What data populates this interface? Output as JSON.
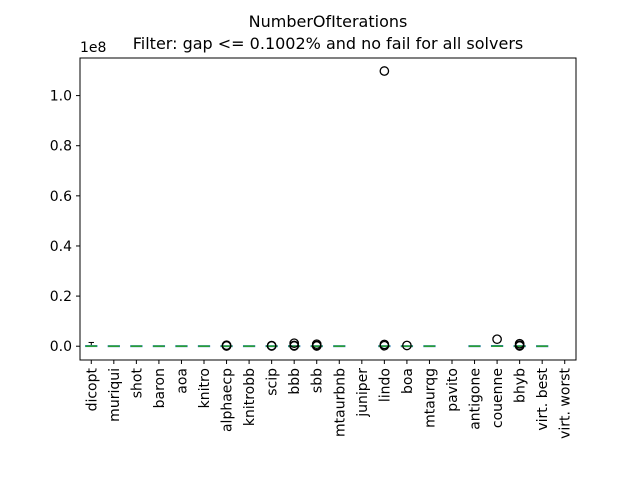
{
  "chart_data": {
    "type": "box",
    "title": "NumberOfIterations",
    "subtitle": "Filter: gap <= 0.1002% and no fail for all solvers",
    "xlabel": "",
    "ylabel": "",
    "y_offset_label": "1e8",
    "y_scale": 100000000,
    "ylim": [
      -5500000,
      115000000
    ],
    "yticks": [
      0,
      20000000,
      40000000,
      60000000,
      80000000,
      100000000
    ],
    "ytick_labels": [
      "0.0",
      "0.2",
      "0.4",
      "0.6",
      "0.8",
      "1.0"
    ],
    "grid": false,
    "categories": [
      "dicopt",
      "muriqui",
      "shot",
      "baron",
      "aoa",
      "knitro",
      "alphaecp",
      "knitrobb",
      "scip",
      "bbb",
      "sbb",
      "mtaurbnb",
      "juniper",
      "lindo",
      "boa",
      "mtaurqg",
      "pavito",
      "antigone",
      "couenne",
      "bhyb",
      "virt. best",
      "virt. worst"
    ],
    "boxes": [
      {
        "category": "dicopt",
        "q1": 0,
        "median": 10000,
        "q3": 60000,
        "whisker_low": 0,
        "whisker_high": 1500000,
        "outliers": []
      },
      {
        "category": "muriqui",
        "q1": 0,
        "median": 2000,
        "q3": 20000,
        "whisker_low": 0,
        "whisker_high": 50000,
        "outliers": []
      },
      {
        "category": "shot",
        "q1": 0,
        "median": 2000,
        "q3": 20000,
        "whisker_low": 0,
        "whisker_high": 50000,
        "outliers": []
      },
      {
        "category": "baron",
        "q1": 0,
        "median": 2000,
        "q3": 20000,
        "whisker_low": 0,
        "whisker_high": 50000,
        "outliers": []
      },
      {
        "category": "aoa",
        "q1": 0,
        "median": 2000,
        "q3": 20000,
        "whisker_low": 0,
        "whisker_high": 50000,
        "outliers": []
      },
      {
        "category": "knitro",
        "q1": 0,
        "median": 2000,
        "q3": 20000,
        "whisker_low": 0,
        "whisker_high": 50000,
        "outliers": []
      },
      {
        "category": "alphaecp",
        "q1": 0,
        "median": 2000,
        "q3": 20000,
        "whisker_low": 0,
        "whisker_high": 50000,
        "outliers": [
          100000,
          400000
        ]
      },
      {
        "category": "knitrobb",
        "q1": 0,
        "median": 2000,
        "q3": 20000,
        "whisker_low": 0,
        "whisker_high": 50000,
        "outliers": []
      },
      {
        "category": "scip",
        "q1": 0,
        "median": 2000,
        "q3": 20000,
        "whisker_low": 0,
        "whisker_high": 50000,
        "outliers": [
          100000,
          250000
        ]
      },
      {
        "category": "bbb",
        "q1": 0,
        "median": 2000,
        "q3": 20000,
        "whisker_low": 0,
        "whisker_high": 50000,
        "outliers": [
          100000,
          300000,
          1200000
        ]
      },
      {
        "category": "sbb",
        "q1": 0,
        "median": 2000,
        "q3": 20000,
        "whisker_low": 0,
        "whisker_high": 50000,
        "outliers": [
          100000,
          300000,
          800000
        ]
      },
      {
        "category": "mtaurbnb",
        "q1": 0,
        "median": 2000,
        "q3": 20000,
        "whisker_low": 0,
        "whisker_high": 50000,
        "outliers": []
      },
      {
        "category": "juniper",
        "q1": null,
        "median": null,
        "q3": null,
        "whisker_low": null,
        "whisker_high": null,
        "outliers": []
      },
      {
        "category": "lindo",
        "q1": 0,
        "median": 2000,
        "q3": 20000,
        "whisker_low": 0,
        "whisker_high": 50000,
        "outliers": [
          200000,
          700000,
          109800000
        ]
      },
      {
        "category": "boa",
        "q1": 0,
        "median": 2000,
        "q3": 20000,
        "whisker_low": 0,
        "whisker_high": 50000,
        "outliers": [
          300000
        ]
      },
      {
        "category": "mtaurqg",
        "q1": 0,
        "median": 2000,
        "q3": 20000,
        "whisker_low": 0,
        "whisker_high": 50000,
        "outliers": []
      },
      {
        "category": "pavito",
        "q1": null,
        "median": null,
        "q3": null,
        "whisker_low": null,
        "whisker_high": null,
        "outliers": []
      },
      {
        "category": "antigone",
        "q1": 0,
        "median": 2000,
        "q3": 20000,
        "whisker_low": 0,
        "whisker_high": 50000,
        "outliers": []
      },
      {
        "category": "couenne",
        "q1": 0,
        "median": 5000,
        "q3": 80000,
        "whisker_low": 0,
        "whisker_high": 300000,
        "outliers": [
          2800000
        ]
      },
      {
        "category": "bhyb",
        "q1": 0,
        "median": 2000,
        "q3": 20000,
        "whisker_low": 0,
        "whisker_high": 50000,
        "outliers": [
          100000,
          400000,
          1000000
        ]
      },
      {
        "category": "virt. best",
        "q1": 0,
        "median": 1000,
        "q3": 10000,
        "whisker_low": 0,
        "whisker_high": 30000,
        "outliers": []
      },
      {
        "category": "virt. worst",
        "q1": null,
        "median": null,
        "q3": null,
        "whisker_low": null,
        "whisker_high": null,
        "outliers": []
      }
    ],
    "colors": {
      "box": "#1f77b4",
      "median": "#2ca02c",
      "outlier": "#000000"
    }
  }
}
